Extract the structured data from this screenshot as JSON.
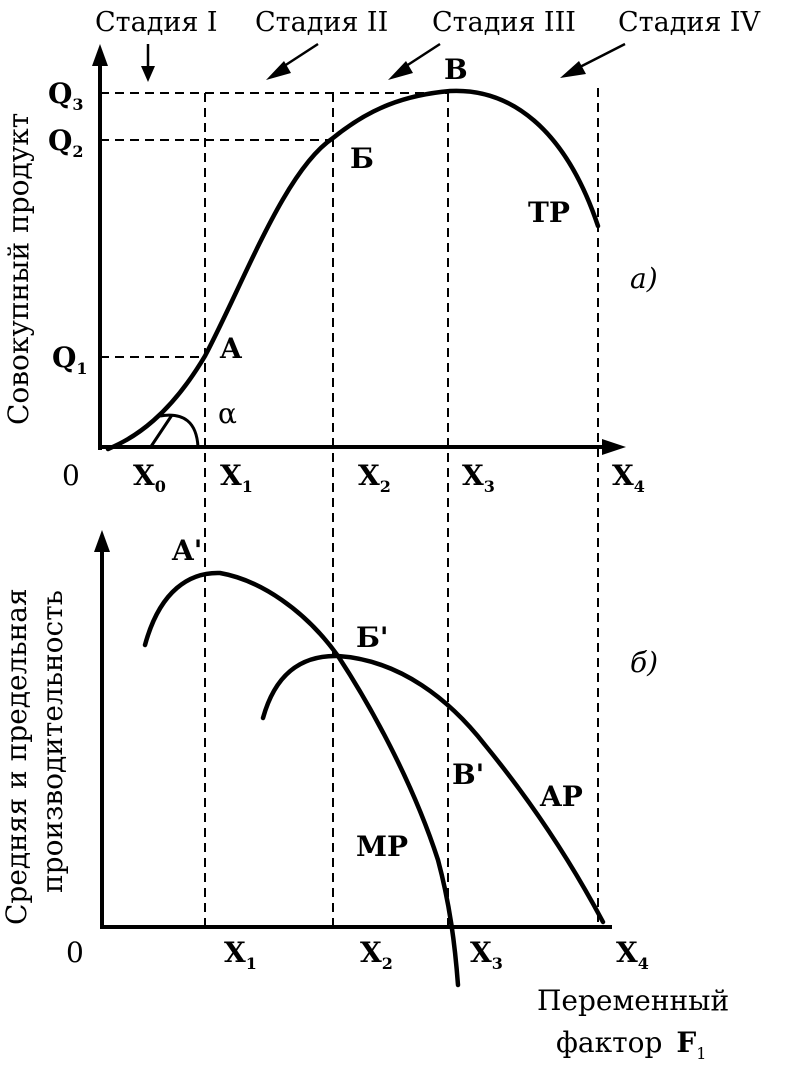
{
  "stages": [
    "Стадия I",
    "Стадия II",
    "Стадия III",
    "Стадия IV"
  ],
  "top": {
    "ylabel": "Совокупный продукт",
    "origin": "0",
    "q_labels": [
      "Q",
      "3",
      "Q",
      "2",
      "Q",
      "1"
    ],
    "x_labels": [
      "X",
      "0",
      "X",
      "1",
      "X",
      "2",
      "X",
      "3",
      "X",
      "4"
    ],
    "points": [
      "A",
      "Б",
      "В"
    ],
    "alpha": "α",
    "curve_label": "TP",
    "panel": "а)"
  },
  "bottom": {
    "ylabel_line1": "Средняя и предельная",
    "ylabel_line2": "производительность",
    "origin": "0",
    "x_labels": [
      "X",
      "1",
      "X",
      "2",
      "X",
      "3",
      "X",
      "4"
    ],
    "points": [
      "A'",
      "Б'",
      "В'"
    ],
    "mp_label": "MP",
    "ap_label": "AP",
    "panel": "б)",
    "xlabel_line1": "Переменный",
    "xlabel_line2": "фактор",
    "xlabel_var": "F",
    "xlabel_sub": "1"
  }
}
